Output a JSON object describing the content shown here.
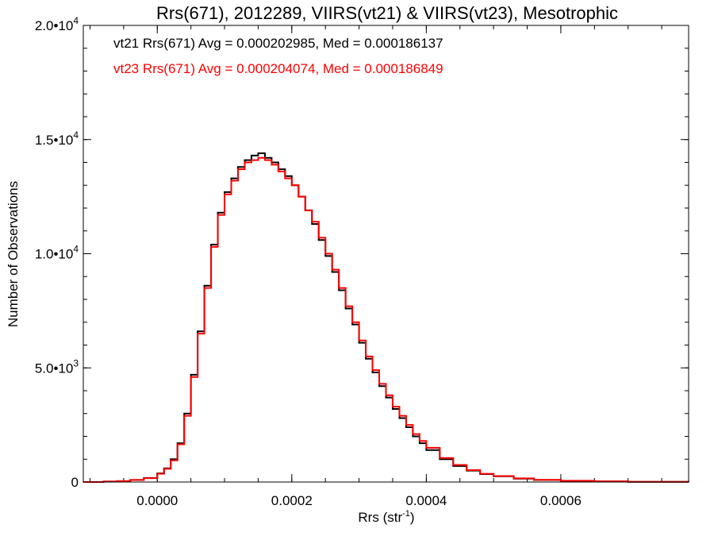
{
  "chart_data": {
    "type": "line",
    "step": true,
    "title": "Rrs(671), 2012289, VIIRS(vt21) & VIIRS(vt23), Mesotrophic",
    "xlabel_main": "Rrs (str",
    "xlabel_sup": "-1",
    "xlabel_close": ")",
    "ylabel": "Number of Observations",
    "xlim": [
      -0.00011,
      0.00079
    ],
    "ylim": [
      0,
      20000
    ],
    "x_ticks": [
      {
        "value": 0.0,
        "label": "0.0000"
      },
      {
        "value": 0.0002,
        "label": "0.0002"
      },
      {
        "value": 0.0004,
        "label": "0.0004"
      },
      {
        "value": 0.0006,
        "label": "0.0006"
      }
    ],
    "y_ticks": [
      {
        "value": 0,
        "label": "0",
        "exp": ""
      },
      {
        "value": 5000,
        "label": "5.0•10",
        "exp": "3"
      },
      {
        "value": 10000,
        "label": "1.0•10",
        "exp": "4"
      },
      {
        "value": 15000,
        "label": "1.5•10",
        "exp": "4"
      },
      {
        "value": 20000,
        "label": "2.0•10",
        "exp": "4"
      }
    ],
    "x_minor_step": 5e-05,
    "y_minor_step": 1000,
    "series": [
      {
        "name": "vt21",
        "label": "vt21 Rrs(671) Avg = 0.000202985, Med = 0.000186137",
        "color": "#000000",
        "x": [
          -0.00011,
          -8e-05,
          -6e-05,
          -4e-05,
          -2e-05,
          0.0,
          1e-05,
          2e-05,
          3e-05,
          4e-05,
          5e-05,
          6e-05,
          7e-05,
          8e-05,
          9e-05,
          0.0001,
          0.00011,
          0.00012,
          0.00013,
          0.00014,
          0.00015,
          0.00016,
          0.00017,
          0.00018,
          0.00019,
          0.0002,
          0.00021,
          0.00022,
          0.00023,
          0.00024,
          0.00025,
          0.00026,
          0.00027,
          0.00028,
          0.00029,
          0.0003,
          0.00031,
          0.00032,
          0.00033,
          0.00034,
          0.00035,
          0.00036,
          0.00037,
          0.00038,
          0.00039,
          0.0004,
          0.00042,
          0.00044,
          0.00046,
          0.00048,
          0.0005,
          0.00053,
          0.00056,
          0.0006,
          0.00065,
          0.0007,
          0.00079
        ],
        "y": [
          0,
          20,
          40,
          90,
          180,
          380,
          600,
          1000,
          1700,
          3000,
          4700,
          6600,
          8600,
          10400,
          11800,
          12700,
          13300,
          13800,
          14100,
          14300,
          14400,
          14200,
          14000,
          13700,
          13400,
          13000,
          12500,
          11900,
          11300,
          10600,
          9900,
          9200,
          8400,
          7600,
          6900,
          6100,
          5400,
          4800,
          4200,
          3700,
          3200,
          2800,
          2400,
          2000,
          1700,
          1400,
          1000,
          700,
          500,
          350,
          250,
          150,
          90,
          50,
          30,
          10,
          0
        ]
      },
      {
        "name": "vt23",
        "label": "vt23 Rrs(671) Avg = 0.000204074, Med = 0.000186849",
        "color": "#ff0000",
        "x": [
          -0.00011,
          -8e-05,
          -6e-05,
          -4e-05,
          -2e-05,
          0.0,
          1e-05,
          2e-05,
          3e-05,
          4e-05,
          5e-05,
          6e-05,
          7e-05,
          8e-05,
          9e-05,
          0.0001,
          0.00011,
          0.00012,
          0.00013,
          0.00014,
          0.00015,
          0.00016,
          0.00017,
          0.00018,
          0.00019,
          0.0002,
          0.00021,
          0.00022,
          0.00023,
          0.00024,
          0.00025,
          0.00026,
          0.00027,
          0.00028,
          0.00029,
          0.0003,
          0.00031,
          0.00032,
          0.00033,
          0.00034,
          0.00035,
          0.00036,
          0.00037,
          0.00038,
          0.00039,
          0.0004,
          0.00042,
          0.00044,
          0.00046,
          0.00048,
          0.0005,
          0.00053,
          0.00056,
          0.0006,
          0.00065,
          0.0007,
          0.00079
        ],
        "y": [
          0,
          20,
          40,
          90,
          170,
          360,
          580,
          950,
          1650,
          2900,
          4600,
          6500,
          8500,
          10300,
          11700,
          12600,
          13200,
          13700,
          14000,
          14100,
          14200,
          14100,
          13900,
          13600,
          13300,
          13000,
          12500,
          11900,
          11400,
          10700,
          10000,
          9300,
          8500,
          7700,
          7000,
          6200,
          5500,
          4900,
          4300,
          3800,
          3300,
          2900,
          2500,
          2100,
          1800,
          1500,
          1050,
          750,
          520,
          360,
          260,
          160,
          95,
          55,
          30,
          10,
          0
        ]
      }
    ]
  }
}
